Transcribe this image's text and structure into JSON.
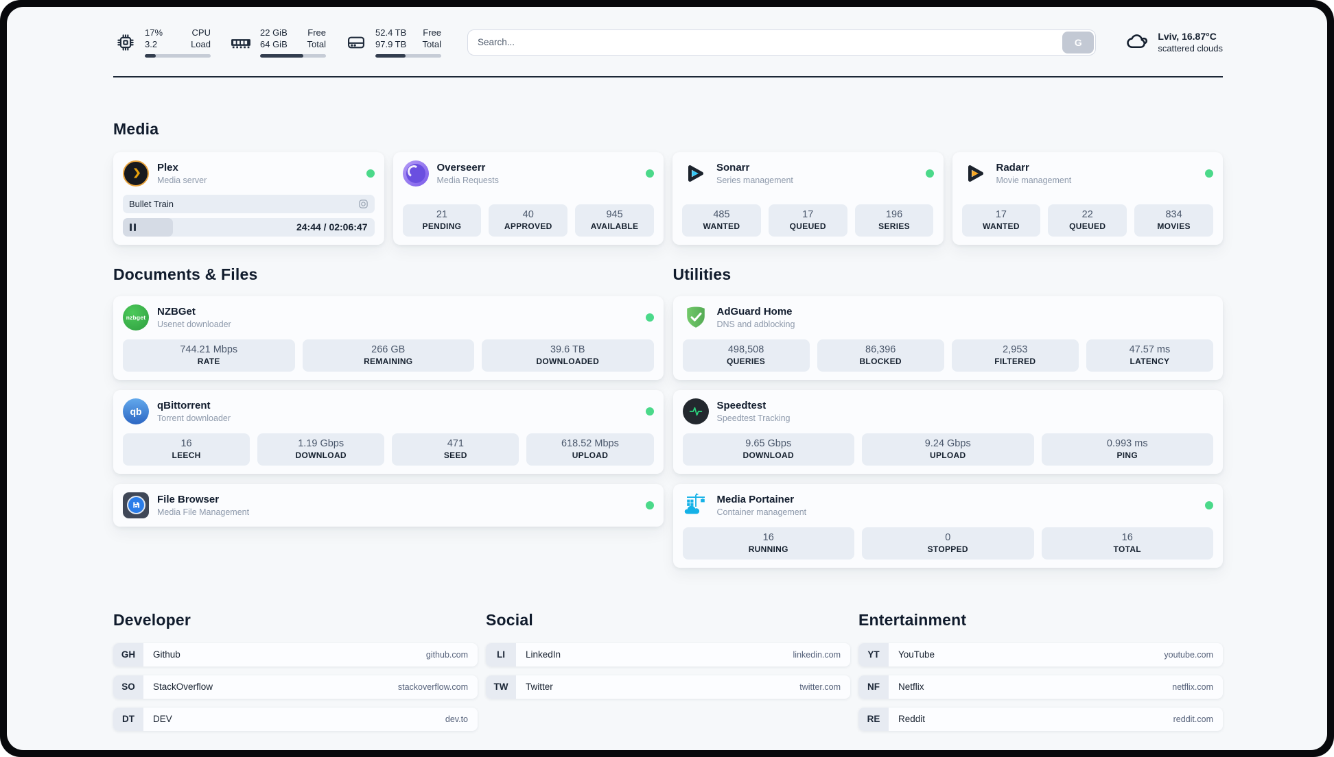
{
  "header": {
    "stats": [
      {
        "value_primary": "17%",
        "value_secondary": "3.2",
        "label_primary": "CPU",
        "label_secondary": "Load",
        "progress": 17
      },
      {
        "value_primary": "22 GiB",
        "value_secondary": "64 GiB",
        "label_primary": "Free",
        "label_secondary": "Total",
        "progress": 66
      },
      {
        "value_primary": "52.4 TB",
        "value_secondary": "97.9 TB",
        "label_primary": "Free",
        "label_secondary": "Total",
        "progress": 46
      }
    ],
    "search": {
      "placeholder": "Search...",
      "button_label": "G"
    },
    "weather": {
      "location_temp": "Lviv, 16.87°C",
      "condition": "scattered clouds"
    }
  },
  "sections": {
    "media": {
      "title": "Media"
    },
    "documents": {
      "title": "Documents & Files"
    },
    "utilities": {
      "title": "Utilities"
    }
  },
  "apps": {
    "plex": {
      "name": "Plex",
      "description": "Media server",
      "now_playing": {
        "title": "Bullet Train",
        "time": "24:44 / 02:06:47",
        "progress": 20
      }
    },
    "overseerr": {
      "name": "Overseerr",
      "description": "Media Requests",
      "stats": [
        {
          "value": "21",
          "label": "PENDING"
        },
        {
          "value": "40",
          "label": "APPROVED"
        },
        {
          "value": "945",
          "label": "AVAILABLE"
        }
      ]
    },
    "sonarr": {
      "name": "Sonarr",
      "description": "Series management",
      "stats": [
        {
          "value": "485",
          "label": "WANTED"
        },
        {
          "value": "17",
          "label": "QUEUED"
        },
        {
          "value": "196",
          "label": "SERIES"
        }
      ]
    },
    "radarr": {
      "name": "Radarr",
      "description": "Movie management",
      "stats": [
        {
          "value": "17",
          "label": "WANTED"
        },
        {
          "value": "22",
          "label": "QUEUED"
        },
        {
          "value": "834",
          "label": "MOVIES"
        }
      ]
    },
    "nzbget": {
      "name": "NZBGet",
      "description": "Usenet downloader",
      "icon_text": "nzbget",
      "stats": [
        {
          "value": "744.21 Mbps",
          "label": "RATE"
        },
        {
          "value": "266 GB",
          "label": "REMAINING"
        },
        {
          "value": "39.6 TB",
          "label": "DOWNLOADED"
        }
      ]
    },
    "qbittorrent": {
      "name": "qBittorrent",
      "description": "Torrent downloader",
      "icon_text": "qb",
      "stats": [
        {
          "value": "16",
          "label": "LEECH"
        },
        {
          "value": "1.19 Gbps",
          "label": "DOWNLOAD"
        },
        {
          "value": "471",
          "label": "SEED"
        },
        {
          "value": "618.52 Mbps",
          "label": "UPLOAD"
        }
      ]
    },
    "filebrowser": {
      "name": "File Browser",
      "description": "Media File Management"
    },
    "adguard": {
      "name": "AdGuard Home",
      "description": "DNS and adblocking",
      "stats": [
        {
          "value": "498,508",
          "label": "QUERIES"
        },
        {
          "value": "86,396",
          "label": "BLOCKED"
        },
        {
          "value": "2,953",
          "label": "FILTERED"
        },
        {
          "value": "47.57 ms",
          "label": "LATENCY"
        }
      ]
    },
    "speedtest": {
      "name": "Speedtest",
      "description": "Speedtest Tracking",
      "stats": [
        {
          "value": "9.65 Gbps",
          "label": "DOWNLOAD"
        },
        {
          "value": "9.24 Gbps",
          "label": "UPLOAD"
        },
        {
          "value": "0.993 ms",
          "label": "PING"
        }
      ]
    },
    "portainer": {
      "name": "Media Portainer",
      "description": "Container management",
      "stats": [
        {
          "value": "16",
          "label": "RUNNING"
        },
        {
          "value": "0",
          "label": "STOPPED"
        },
        {
          "value": "16",
          "label": "TOTAL"
        }
      ]
    }
  },
  "bookmarks": {
    "developer": {
      "title": "Developer",
      "links": [
        {
          "abbr": "GH",
          "name": "Github",
          "url": "github.com"
        },
        {
          "abbr": "SO",
          "name": "StackOverflow",
          "url": "stackoverflow.com"
        },
        {
          "abbr": "DT",
          "name": "DEV",
          "url": "dev.to"
        }
      ]
    },
    "social": {
      "title": "Social",
      "links": [
        {
          "abbr": "LI",
          "name": "LinkedIn",
          "url": "linkedin.com"
        },
        {
          "abbr": "TW",
          "name": "Twitter",
          "url": "twitter.com"
        }
      ]
    },
    "entertainment": {
      "title": "Entertainment",
      "links": [
        {
          "abbr": "YT",
          "name": "YouTube",
          "url": "youtube.com"
        },
        {
          "abbr": "NF",
          "name": "Netflix",
          "url": "netflix.com"
        },
        {
          "abbr": "RE",
          "name": "Reddit",
          "url": "reddit.com"
        }
      ]
    }
  },
  "colors": {
    "status_online": "#4bd98a",
    "progress_fill": "#323d4e",
    "plex_accent": "#e5a00d"
  }
}
